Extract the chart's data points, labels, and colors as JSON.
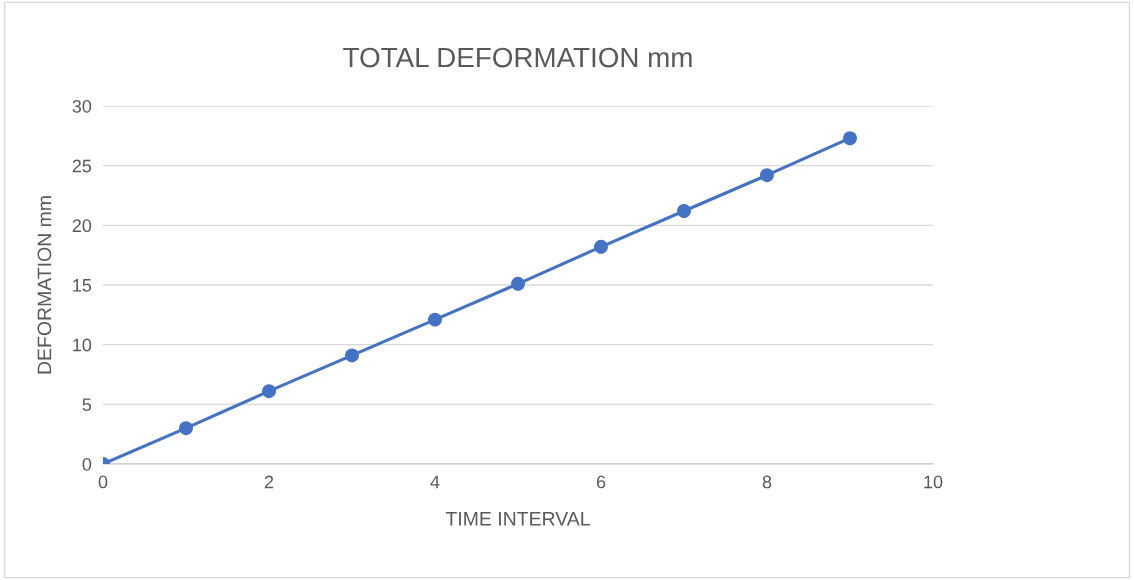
{
  "chart_data": {
    "type": "line",
    "title": "TOTAL DEFORMATION mm",
    "xlabel": "TIME INTERVAL",
    "ylabel": "DEFORMATION mm",
    "x": [
      0,
      1,
      2,
      3,
      4,
      5,
      6,
      7,
      8,
      9
    ],
    "series": [
      {
        "color": "#4472c4",
        "values": [
          0,
          3.0,
          6.1,
          9.1,
          12.1,
          15.1,
          18.2,
          21.2,
          24.2,
          27.3
        ]
      }
    ],
    "xlim": [
      0,
      10
    ],
    "xticks": [
      0,
      2,
      4,
      6,
      8,
      10
    ],
    "ylim": [
      0,
      30
    ],
    "yticks": [
      0,
      5,
      10,
      15,
      20,
      25,
      30
    ],
    "grid": "y",
    "marker": "circle",
    "line_style": "solid"
  }
}
